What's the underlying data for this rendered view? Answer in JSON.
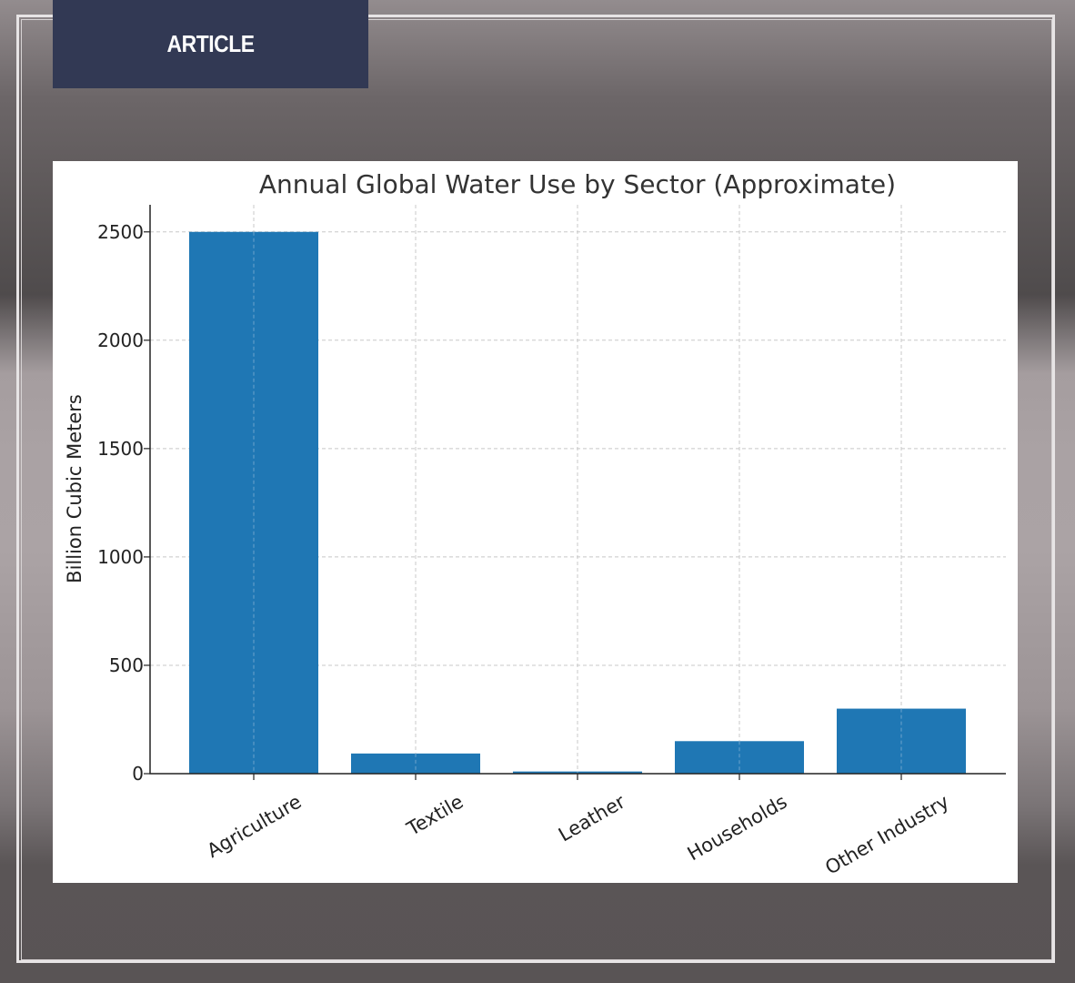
{
  "banner": {
    "label": "ARTICLE"
  },
  "colors": {
    "bar": "#1f77b4",
    "banner_bg": "#323954",
    "grid": "#c8c8c8",
    "axis": "#222222",
    "text": "#222222"
  },
  "chart_data": {
    "type": "bar",
    "title": "Annual Global Water Use by Sector (Approximate)",
    "xlabel": "",
    "ylabel": "Billion Cubic Meters",
    "categories": [
      "Agriculture",
      "Textile",
      "Leather",
      "Households",
      "Other Industry"
    ],
    "values": [
      2500,
      93,
      10,
      150,
      300
    ],
    "ylim": [
      0,
      2625
    ],
    "yticks": [
      0,
      500,
      1000,
      1500,
      2000,
      2500
    ],
    "grid": true,
    "grid_style": "dashed"
  }
}
